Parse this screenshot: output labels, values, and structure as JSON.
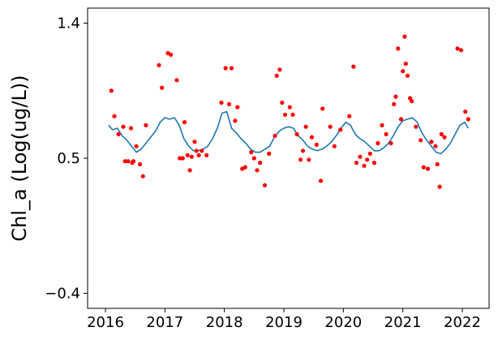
{
  "chart_data": {
    "type": "scatter",
    "ylabel": "Chl_a (Log(ug/L))",
    "xlim": [
      2015.7,
      2022.45
    ],
    "ylim": [
      -0.5,
      1.5
    ],
    "x_ticks": [
      2016,
      2017,
      2018,
      2019,
      2020,
      2021,
      2022
    ],
    "x_tick_labels": [
      "2016",
      "2017",
      "2018",
      "2019",
      "2020",
      "2021",
      "2022"
    ],
    "y_ticks": [
      -0.4,
      0.5,
      1.4
    ],
    "y_tick_labels": [
      "−0.4",
      "0.5",
      "1.4"
    ],
    "grid": false,
    "colors": {
      "points": "#ff0000",
      "line": "#1f77b4"
    },
    "series": [
      {
        "kind": "line",
        "x": [
          2016.05,
          2016.12,
          2016.2,
          2016.28,
          2016.36,
          2016.44,
          2016.52,
          2016.6,
          2016.68,
          2016.76,
          2016.84,
          2016.92,
          2017.0,
          2017.08,
          2017.16,
          2017.24,
          2017.32,
          2017.4,
          2017.48,
          2017.56,
          2017.64,
          2017.72,
          2017.8,
          2017.88,
          2017.96,
          2018.04,
          2018.12,
          2018.2,
          2018.28,
          2018.36,
          2018.44,
          2018.52,
          2018.6,
          2018.68,
          2018.76,
          2018.84,
          2018.92,
          2019.0,
          2019.08,
          2019.16,
          2019.24,
          2019.32,
          2019.4,
          2019.48,
          2019.56,
          2019.64,
          2019.72,
          2019.8,
          2019.88,
          2019.96,
          2020.04,
          2020.12,
          2020.2,
          2020.28,
          2020.36,
          2020.44,
          2020.52,
          2020.6,
          2020.68,
          2020.76,
          2020.84,
          2020.92,
          2021.0,
          2021.08,
          2021.16,
          2021.24,
          2021.32,
          2021.4,
          2021.48,
          2021.56,
          2021.64,
          2021.72,
          2021.8,
          2021.88,
          2021.96,
          2022.04,
          2022.1
        ],
        "y": [
          0.72,
          0.69,
          0.7,
          0.65,
          0.62,
          0.58,
          0.54,
          0.56,
          0.6,
          0.64,
          0.68,
          0.74,
          0.77,
          0.76,
          0.77,
          0.72,
          0.63,
          0.58,
          0.55,
          0.55,
          0.56,
          0.58,
          0.63,
          0.7,
          0.8,
          0.81,
          0.7,
          0.67,
          0.63,
          0.6,
          0.56,
          0.54,
          0.54,
          0.56,
          0.58,
          0.64,
          0.68,
          0.7,
          0.71,
          0.7,
          0.65,
          0.62,
          0.58,
          0.56,
          0.55,
          0.56,
          0.58,
          0.61,
          0.65,
          0.7,
          0.74,
          0.72,
          0.66,
          0.63,
          0.61,
          0.58,
          0.55,
          0.55,
          0.57,
          0.6,
          0.65,
          0.71,
          0.75,
          0.76,
          0.77,
          0.74,
          0.67,
          0.62,
          0.58,
          0.54,
          0.53,
          0.56,
          0.6,
          0.66,
          0.72,
          0.74,
          0.7
        ]
      },
      {
        "kind": "scatter",
        "x": [
          2016.1,
          2016.15,
          2016.22,
          2016.3,
          2016.33,
          2016.38,
          2016.43,
          2016.45,
          2016.47,
          2016.52,
          2016.58,
          2016.63,
          2016.68,
          2016.9,
          2016.95,
          2017.05,
          2017.1,
          2017.2,
          2017.25,
          2017.3,
          2017.33,
          2017.38,
          2017.42,
          2017.45,
          2017.5,
          2017.53,
          2017.57,
          2017.62,
          2017.7,
          2017.95,
          2018.02,
          2018.08,
          2018.12,
          2018.18,
          2018.22,
          2018.3,
          2018.35,
          2018.45,
          2018.5,
          2018.55,
          2018.6,
          2018.68,
          2018.75,
          2018.85,
          2018.88,
          2018.93,
          2018.97,
          2019.02,
          2019.1,
          2019.15,
          2019.22,
          2019.28,
          2019.32,
          2019.37,
          2019.42,
          2019.47,
          2019.55,
          2019.62,
          2019.65,
          2019.78,
          2019.85,
          2019.95,
          2020.1,
          2020.17,
          2020.22,
          2020.28,
          2020.35,
          2020.4,
          2020.45,
          2020.52,
          2020.58,
          2020.65,
          2020.72,
          2020.8,
          2020.85,
          2020.88,
          2020.92,
          2020.97,
          2021.0,
          2021.03,
          2021.05,
          2021.08,
          2021.12,
          2021.15,
          2021.22,
          2021.3,
          2021.35,
          2021.42,
          2021.48,
          2021.55,
          2021.58,
          2021.62,
          2021.65,
          2021.7,
          2021.92,
          2021.98,
          2022.05,
          2022.1
        ],
        "y": [
          0.95,
          0.78,
          0.66,
          0.71,
          0.48,
          0.48,
          0.7,
          0.47,
          0.48,
          0.58,
          0.46,
          0.38,
          0.72,
          1.12,
          0.97,
          1.2,
          1.19,
          1.02,
          0.5,
          0.5,
          0.74,
          0.52,
          0.42,
          0.51,
          0.61,
          0.55,
          0.52,
          0.55,
          0.52,
          0.87,
          1.1,
          0.86,
          1.1,
          0.75,
          0.84,
          0.43,
          0.44,
          0.54,
          0.5,
          0.42,
          0.47,
          0.32,
          0.53,
          0.65,
          1.05,
          1.09,
          0.87,
          0.79,
          0.84,
          0.79,
          0.66,
          0.49,
          0.55,
          0.71,
          0.49,
          0.64,
          0.59,
          0.35,
          0.83,
          0.71,
          0.58,
          0.69,
          0.78,
          1.11,
          0.47,
          0.51,
          0.45,
          0.49,
          0.53,
          0.47,
          0.6,
          0.72,
          0.66,
          0.6,
          0.86,
          0.91,
          1.23,
          0.76,
          1.08,
          1.31,
          1.13,
          1.05,
          0.9,
          0.88,
          0.71,
          0.62,
          0.44,
          0.43,
          0.61,
          0.58,
          0.46,
          0.31,
          0.66,
          0.64,
          1.23,
          1.22,
          0.81,
          0.76
        ]
      }
    ]
  }
}
